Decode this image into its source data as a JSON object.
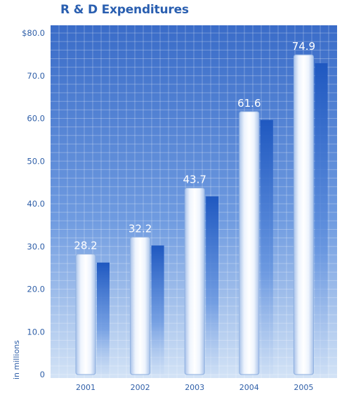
{
  "chart_data": {
    "type": "bar",
    "title": "R & D Expenditures",
    "ylabel": "in millions",
    "categories": [
      "2001",
      "2002",
      "2003",
      "2004",
      "2005"
    ],
    "values": [
      28.2,
      32.2,
      43.7,
      61.6,
      74.9
    ],
    "value_labels": [
      "28.2",
      "32.2",
      "43.7",
      "61.6",
      "74.9"
    ],
    "yticks": [
      "0",
      "10.0",
      "20.0",
      "30.0",
      "40.0",
      "50.0",
      "60.0",
      "70.0",
      "$80.0"
    ],
    "ylim": [
      0,
      80
    ],
    "grid": true,
    "colors": {
      "title": "#2a5fb0",
      "panel_top": "#3f6fc9",
      "panel_bottom": "#cfe0f5",
      "bar_highlight": "#ffffff",
      "bar_edge": "#8fb0e0",
      "shadow": "#2a63c4",
      "axis_text": "#2f5fa8"
    }
  }
}
